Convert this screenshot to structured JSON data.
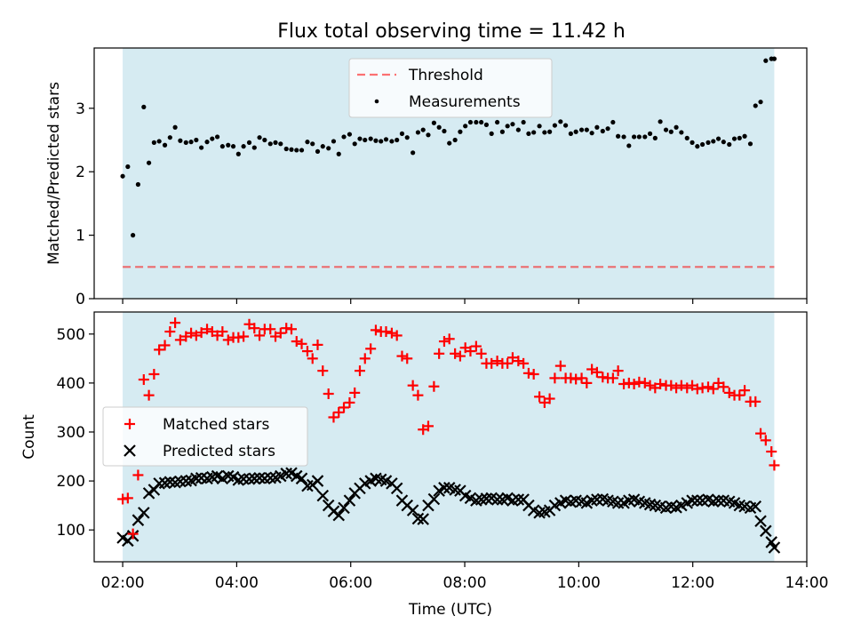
{
  "title": "Flux total observing time = 11.42 h",
  "colors": {
    "observing_band": "#add8e6",
    "threshold": "#ff0000",
    "measurements": "#000000",
    "matched": "#ff0000",
    "predicted": "#000000"
  },
  "chart_data": [
    {
      "type": "scatter",
      "panel": "top",
      "xlabel": "",
      "ylabel": "Matched/Predicted stars",
      "xlim": [
        1.5,
        14.0
      ],
      "ylim": [
        0,
        3.95
      ],
      "yticks": [
        0,
        1,
        2,
        3
      ],
      "observing_window": [
        2.0,
        13.43
      ],
      "threshold": 0.5,
      "legend": {
        "position": "top-center",
        "entries": [
          "Threshold",
          "Measurements"
        ]
      },
      "series": [
        {
          "name": "Measurements",
          "x": [
            2.0,
            2.09,
            2.18,
            2.27,
            2.37,
            2.46,
            2.55,
            2.64,
            2.74,
            2.83,
            2.92,
            3.01,
            3.11,
            3.2,
            3.29,
            3.38,
            3.48,
            3.57,
            3.66,
            3.75,
            3.85,
            3.94,
            4.03,
            4.12,
            4.22,
            4.31,
            4.4,
            4.49,
            4.59,
            4.68,
            4.77,
            4.87,
            4.96,
            5.05,
            5.14,
            5.24,
            5.33,
            5.42,
            5.51,
            5.61,
            5.7,
            5.79,
            5.88,
            5.98,
            6.07,
            6.16,
            6.25,
            6.35,
            6.44,
            6.53,
            6.62,
            6.72,
            6.81,
            6.9,
            6.99,
            7.09,
            7.18,
            7.27,
            7.36,
            7.46,
            7.55,
            7.64,
            7.73,
            7.83,
            7.92,
            8.01,
            8.1,
            8.2,
            8.29,
            8.38,
            8.47,
            8.57,
            8.66,
            8.75,
            8.84,
            8.94,
            9.03,
            9.12,
            9.21,
            9.31,
            9.4,
            9.49,
            9.58,
            9.68,
            9.77,
            9.86,
            9.95,
            10.05,
            10.14,
            10.23,
            10.32,
            10.42,
            10.51,
            10.6,
            10.69,
            10.79,
            10.88,
            10.97,
            11.06,
            11.16,
            11.25,
            11.34,
            11.43,
            11.53,
            11.62,
            11.71,
            11.8,
            11.9,
            11.99,
            12.08,
            12.17,
            12.27,
            12.36,
            12.45,
            12.54,
            12.64,
            12.73,
            12.82,
            12.91,
            13.01,
            13.1,
            13.19,
            13.28,
            13.38,
            13.43
          ],
          "y": [
            1.93,
            2.08,
            1.0,
            1.8,
            3.02,
            2.14,
            2.46,
            2.48,
            2.42,
            2.54,
            2.7,
            2.49,
            2.46,
            2.47,
            2.5,
            2.38,
            2.47,
            2.52,
            2.55,
            2.4,
            2.42,
            2.4,
            2.28,
            2.4,
            2.46,
            2.38,
            2.54,
            2.5,
            2.44,
            2.46,
            2.44,
            2.36,
            2.35,
            2.34,
            2.34,
            2.47,
            2.44,
            2.32,
            2.4,
            2.37,
            2.48,
            2.28,
            2.55,
            2.59,
            2.44,
            2.52,
            2.5,
            2.52,
            2.49,
            2.48,
            2.51,
            2.48,
            2.5,
            2.6,
            2.54,
            2.3,
            2.62,
            2.66,
            2.58,
            2.77,
            2.7,
            2.64,
            2.45,
            2.5,
            2.63,
            2.72,
            2.78,
            2.78,
            2.78,
            2.74,
            2.6,
            2.78,
            2.63,
            2.72,
            2.75,
            2.66,
            2.78,
            2.6,
            2.62,
            2.72,
            2.62,
            2.63,
            2.73,
            2.79,
            2.73,
            2.6,
            2.63,
            2.66,
            2.66,
            2.61,
            2.7,
            2.64,
            2.68,
            2.78,
            2.56,
            2.55,
            2.41,
            2.55,
            2.55,
            2.55,
            2.6,
            2.53,
            2.79,
            2.66,
            2.63,
            2.7,
            2.62,
            2.53,
            2.46,
            2.4,
            2.43,
            2.46,
            2.48,
            2.52,
            2.47,
            2.43,
            2.52,
            2.53,
            2.56,
            2.44,
            3.04,
            3.1,
            3.75,
            3.78,
            3.78
          ]
        }
      ]
    },
    {
      "type": "scatter",
      "panel": "bottom",
      "xlabel": "Time (UTC)",
      "ylabel": "Count",
      "xlim": [
        1.5,
        14.0
      ],
      "ylim": [
        35,
        545
      ],
      "xticks": [
        2,
        4,
        6,
        8,
        10,
        12,
        14
      ],
      "xticklabels": [
        "02:00",
        "04:00",
        "06:00",
        "08:00",
        "10:00",
        "12:00",
        "14:00"
      ],
      "yticks": [
        100,
        200,
        300,
        400,
        500
      ],
      "observing_window": [
        2.0,
        13.43
      ],
      "legend": {
        "position": "center-left",
        "entries": [
          "Matched stars",
          "Predicted stars"
        ]
      },
      "series": [
        {
          "name": "Matched stars",
          "x": [
            2.0,
            2.09,
            2.18,
            2.27,
            2.37,
            2.46,
            2.55,
            2.64,
            2.74,
            2.83,
            2.92,
            3.01,
            3.11,
            3.2,
            3.29,
            3.38,
            3.48,
            3.57,
            3.66,
            3.75,
            3.85,
            3.94,
            4.03,
            4.12,
            4.22,
            4.31,
            4.4,
            4.49,
            4.59,
            4.68,
            4.77,
            4.87,
            4.96,
            5.05,
            5.14,
            5.24,
            5.33,
            5.42,
            5.51,
            5.61,
            5.7,
            5.79,
            5.88,
            5.98,
            6.07,
            6.16,
            6.25,
            6.35,
            6.44,
            6.53,
            6.62,
            6.72,
            6.81,
            6.9,
            6.99,
            7.09,
            7.18,
            7.27,
            7.36,
            7.46,
            7.55,
            7.64,
            7.73,
            7.83,
            7.92,
            8.01,
            8.1,
            8.2,
            8.29,
            8.38,
            8.47,
            8.57,
            8.66,
            8.75,
            8.84,
            8.94,
            9.03,
            9.12,
            9.21,
            9.31,
            9.4,
            9.49,
            9.58,
            9.68,
            9.77,
            9.86,
            9.95,
            10.05,
            10.14,
            10.23,
            10.32,
            10.42,
            10.51,
            10.6,
            10.69,
            10.79,
            10.88,
            10.97,
            11.06,
            11.16,
            11.25,
            11.34,
            11.43,
            11.53,
            11.62,
            11.71,
            11.8,
            11.9,
            11.99,
            12.08,
            12.17,
            12.27,
            12.36,
            12.45,
            12.54,
            12.64,
            12.73,
            12.82,
            12.91,
            13.01,
            13.1,
            13.19,
            13.28,
            13.38,
            13.43
          ],
          "y": [
            163,
            165,
            92,
            212,
            407,
            375,
            418,
            468,
            477,
            505,
            523,
            488,
            495,
            502,
            497,
            503,
            510,
            505,
            497,
            505,
            488,
            493,
            493,
            495,
            520,
            512,
            497,
            510,
            510,
            495,
            502,
            512,
            510,
            485,
            480,
            465,
            450,
            478,
            425,
            378,
            330,
            340,
            350,
            360,
            380,
            425,
            450,
            470,
            508,
            505,
            505,
            502,
            497,
            455,
            450,
            395,
            375,
            305,
            312,
            393,
            460,
            485,
            490,
            460,
            455,
            472,
            465,
            475,
            460,
            440,
            440,
            445,
            440,
            440,
            452,
            445,
            440,
            420,
            418,
            372,
            360,
            368,
            410,
            435,
            410,
            410,
            408,
            410,
            400,
            428,
            422,
            412,
            410,
            410,
            425,
            398,
            400,
            398,
            402,
            400,
            395,
            390,
            398,
            395,
            395,
            390,
            395,
            390,
            395,
            388,
            390,
            392,
            388,
            400,
            392,
            380,
            375,
            375,
            385,
            362,
            362,
            297,
            283,
            260,
            232
          ]
        },
        {
          "name": "Predicted stars",
          "x": [
            2.0,
            2.09,
            2.18,
            2.27,
            2.37,
            2.46,
            2.55,
            2.64,
            2.74,
            2.83,
            2.92,
            3.01,
            3.11,
            3.2,
            3.29,
            3.38,
            3.48,
            3.57,
            3.66,
            3.75,
            3.85,
            3.94,
            4.03,
            4.12,
            4.22,
            4.31,
            4.4,
            4.49,
            4.59,
            4.68,
            4.77,
            4.87,
            4.96,
            5.05,
            5.14,
            5.24,
            5.33,
            5.42,
            5.51,
            5.61,
            5.7,
            5.79,
            5.88,
            5.98,
            6.07,
            6.16,
            6.25,
            6.35,
            6.44,
            6.53,
            6.62,
            6.72,
            6.81,
            6.9,
            6.99,
            7.09,
            7.18,
            7.27,
            7.36,
            7.46,
            7.55,
            7.64,
            7.73,
            7.83,
            7.92,
            8.01,
            8.1,
            8.2,
            8.29,
            8.38,
            8.47,
            8.57,
            8.66,
            8.75,
            8.84,
            8.94,
            9.03,
            9.12,
            9.21,
            9.31,
            9.4,
            9.49,
            9.58,
            9.68,
            9.77,
            9.86,
            9.95,
            10.05,
            10.14,
            10.23,
            10.32,
            10.42,
            10.51,
            10.6,
            10.69,
            10.79,
            10.88,
            10.97,
            11.06,
            11.16,
            11.25,
            11.34,
            11.43,
            11.53,
            11.62,
            11.71,
            11.8,
            11.9,
            11.99,
            12.08,
            12.17,
            12.27,
            12.36,
            12.45,
            12.54,
            12.64,
            12.73,
            12.82,
            12.91,
            13.01,
            13.1,
            13.19,
            13.28,
            13.38,
            13.43
          ],
          "y": [
            84,
            78,
            88,
            120,
            135,
            175,
            182,
            195,
            196,
            198,
            197,
            199,
            200,
            201,
            205,
            206,
            205,
            208,
            210,
            205,
            210,
            208,
            202,
            204,
            204,
            205,
            206,
            205,
            206,
            207,
            210,
            215,
            216,
            210,
            205,
            190,
            192,
            200,
            170,
            150,
            138,
            130,
            145,
            160,
            175,
            185,
            195,
            200,
            205,
            203,
            200,
            195,
            185,
            160,
            150,
            140,
            123,
            122,
            150,
            163,
            180,
            186,
            186,
            182,
            180,
            170,
            165,
            160,
            162,
            164,
            165,
            162,
            162,
            165,
            160,
            162,
            162,
            150,
            140,
            135,
            137,
            140,
            150,
            155,
            160,
            157,
            160,
            158,
            155,
            160,
            162,
            163,
            160,
            158,
            155,
            155,
            160,
            162,
            158,
            155,
            152,
            150,
            148,
            145,
            148,
            146,
            150,
            155,
            160,
            160,
            160,
            162,
            158,
            160,
            160,
            158,
            155,
            150,
            148,
            145,
            148,
            118,
            98,
            75,
            64
          ]
        }
      ]
    }
  ]
}
